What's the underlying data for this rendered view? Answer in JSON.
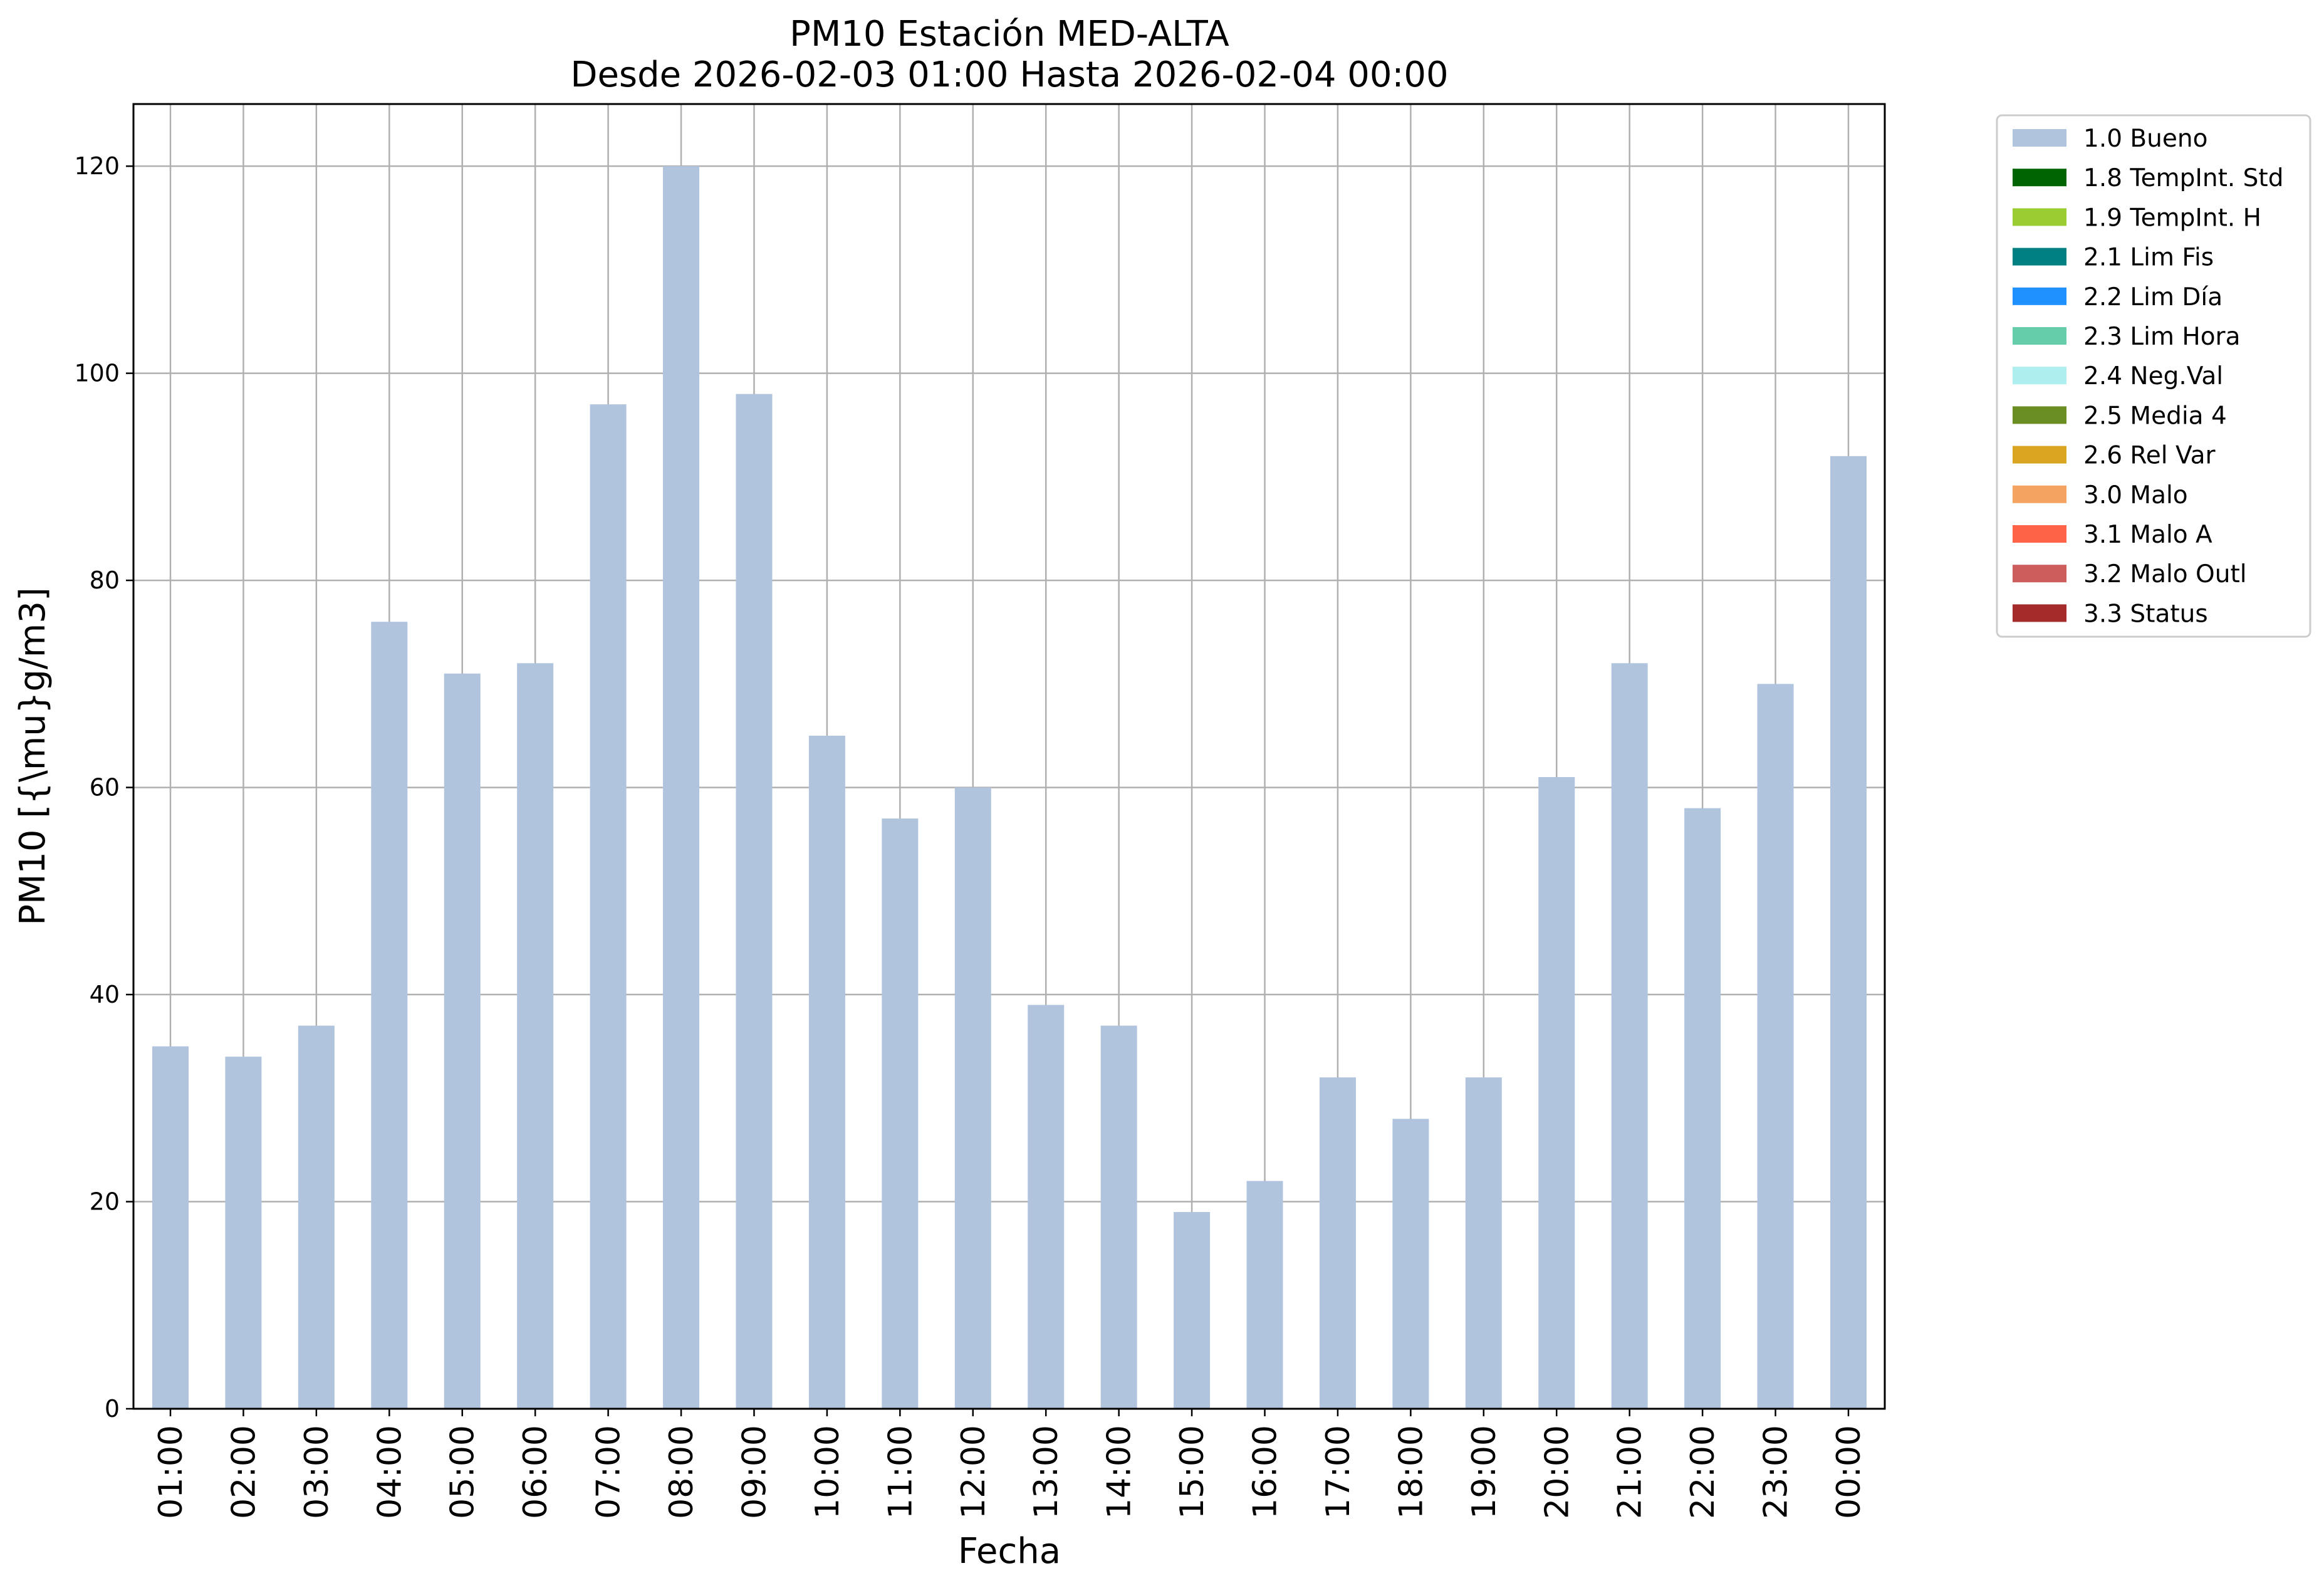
{
  "chart_data": {
    "type": "bar",
    "title": "PM10 Estación MED-ALTA",
    "subtitle": "Desde 2026-02-03 01:00 Hasta 2026-02-04 00:00",
    "xlabel": "Fecha",
    "ylabel": "PM10 [{\\mu}g/m3]",
    "categories": [
      "01:00",
      "02:00",
      "03:00",
      "04:00",
      "05:00",
      "06:00",
      "07:00",
      "08:00",
      "09:00",
      "10:00",
      "11:00",
      "12:00",
      "13:00",
      "14:00",
      "15:00",
      "16:00",
      "17:00",
      "18:00",
      "19:00",
      "20:00",
      "21:00",
      "22:00",
      "23:00",
      "00:00"
    ],
    "series": [
      {
        "name": "1.0 Bueno",
        "color": "#b0c4de",
        "values": [
          35,
          34,
          37,
          76,
          71,
          72,
          97,
          120,
          98,
          65,
          57,
          60,
          39,
          37,
          19,
          22,
          32,
          28,
          32,
          61,
          72,
          58,
          70,
          92
        ]
      }
    ],
    "ylim": [
      0,
      126
    ],
    "yticks": [
      0,
      20,
      40,
      60,
      80,
      100,
      120
    ],
    "grid": true,
    "legend_position": "outside-right",
    "legend": [
      {
        "label": "1.0 Bueno",
        "color": "#b0c4de"
      },
      {
        "label": "1.8 TempInt. Std",
        "color": "#006400"
      },
      {
        "label": "1.9 TempInt. H",
        "color": "#9acd32"
      },
      {
        "label": "2.1 Lim Fis",
        "color": "#008080"
      },
      {
        "label": "2.2 Lim Día",
        "color": "#1e90ff"
      },
      {
        "label": "2.3 Lim Hora",
        "color": "#66cdaa"
      },
      {
        "label": "2.4 Neg.Val",
        "color": "#afeeee"
      },
      {
        "label": "2.5 Media 4",
        "color": "#6b8e23"
      },
      {
        "label": "2.6 Rel Var",
        "color": "#daa520"
      },
      {
        "label": "3.0 Malo",
        "color": "#f4a460"
      },
      {
        "label": "3.1 Malo A",
        "color": "#ff6347"
      },
      {
        "label": "3.2 Malo Outl",
        "color": "#cd5c5c"
      },
      {
        "label": "3.3 Status",
        "color": "#a52a2a"
      }
    ]
  }
}
